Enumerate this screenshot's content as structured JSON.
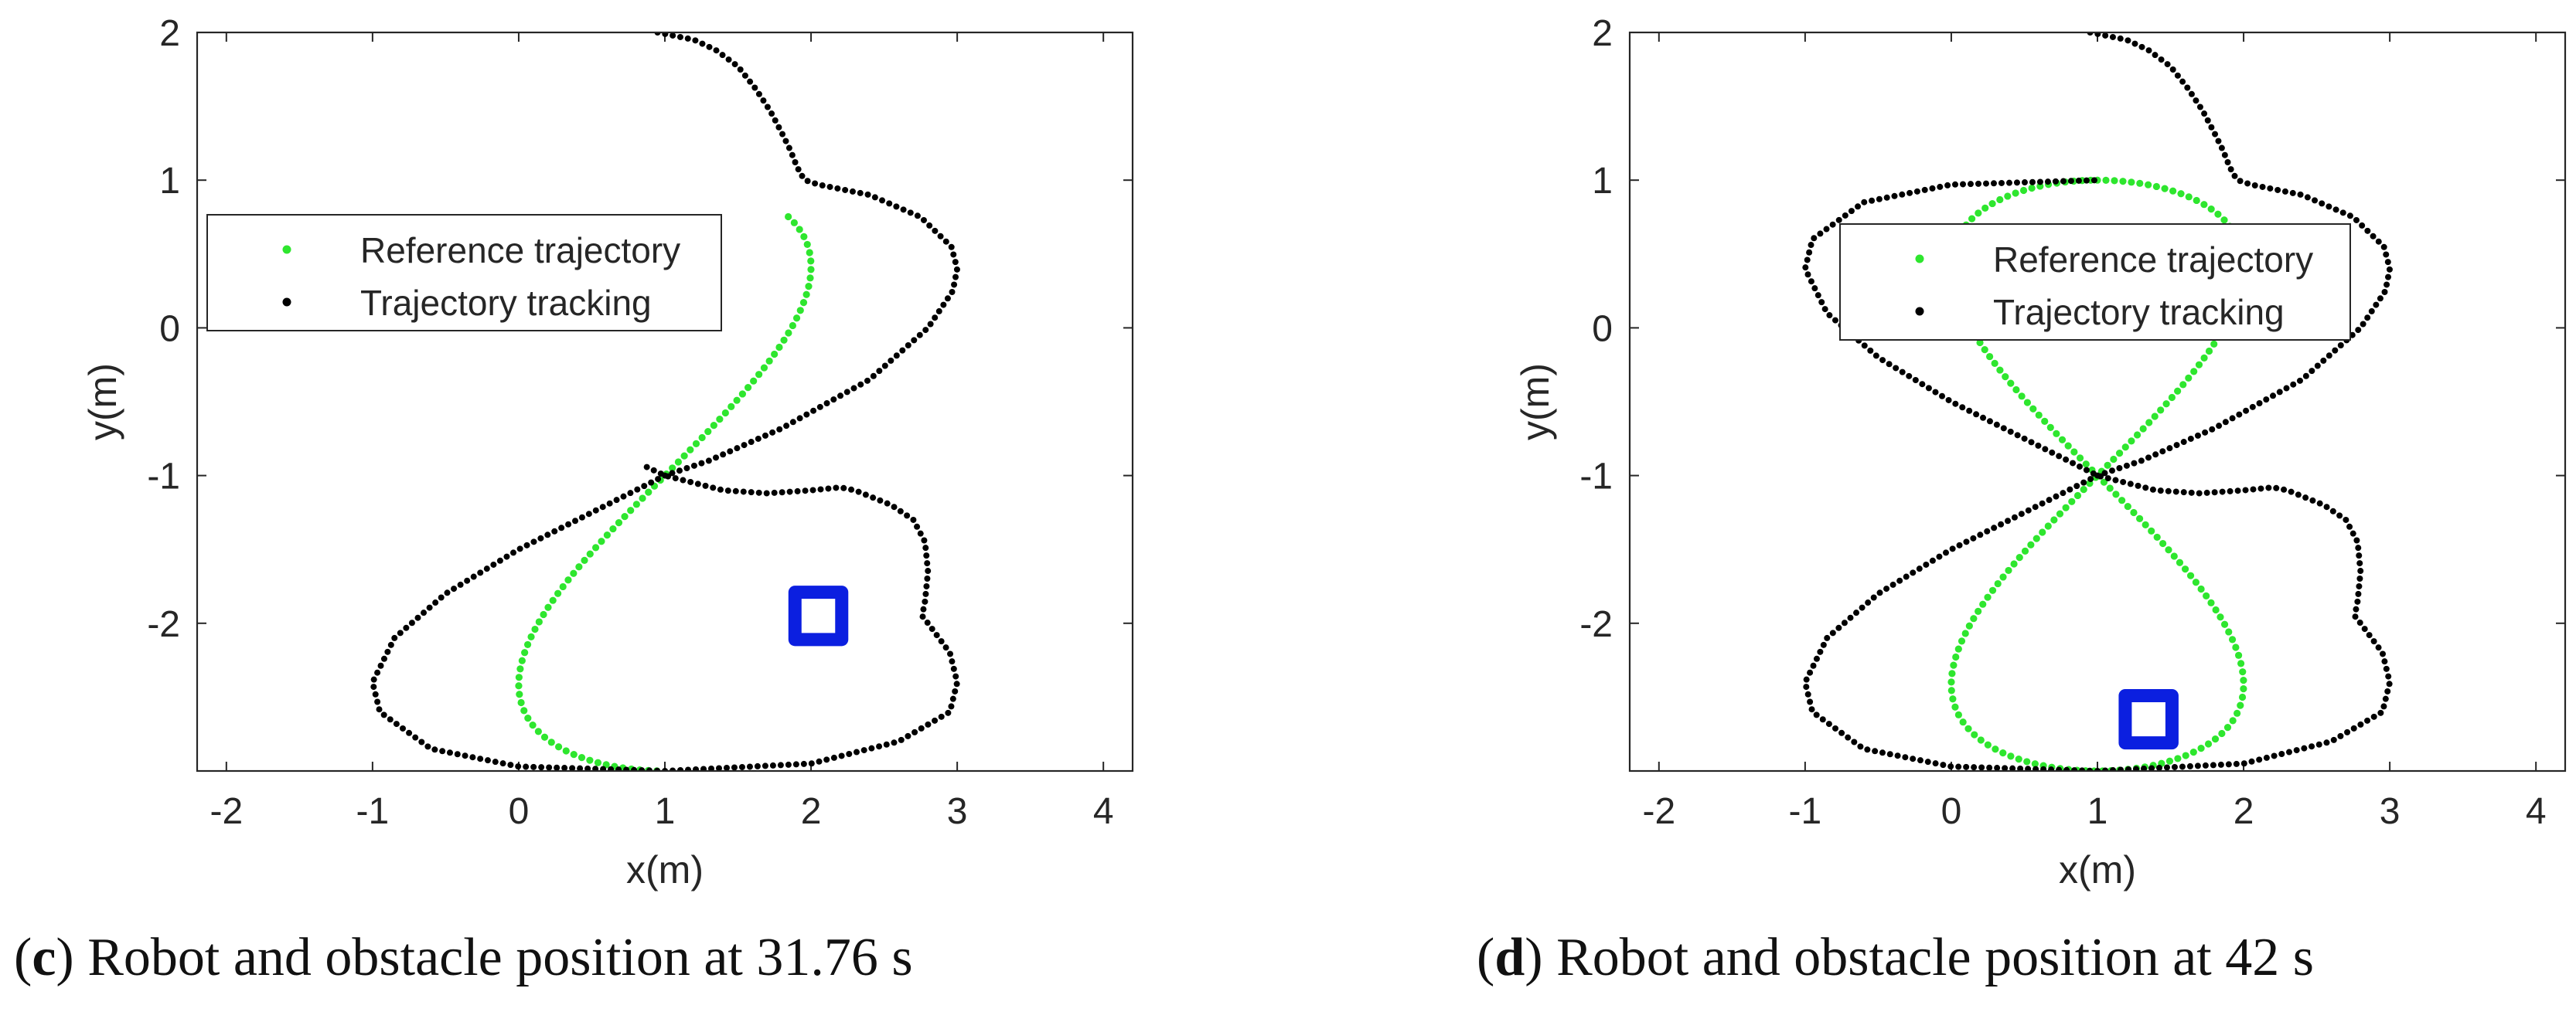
{
  "colors": {
    "reference": "#2ee62e",
    "tracking": "#000000",
    "obstacle": "#0b1fe0",
    "axis": "#262626"
  },
  "chart_data": [
    {
      "type": "scatter",
      "panel_label": "c",
      "caption": "Robot and obstacle position at 31.76 s",
      "xlabel": "x(m)",
      "ylabel": "y(m)",
      "xlim": [
        -2.2,
        4.2
      ],
      "ylim": [
        -3.0,
        2.0
      ],
      "xticks": [
        -2,
        -1,
        0,
        1,
        2,
        3,
        4
      ],
      "yticks": [
        -2,
        -1,
        0,
        1,
        2
      ],
      "legend": {
        "position": "upper-left",
        "entries": [
          "Reference trajectory",
          "Trajectory  tracking"
        ]
      },
      "series": [
        {
          "name": "Reference trajectory",
          "shape": "figure-eight",
          "center": [
            1.0,
            -1.0
          ],
          "amplitude": [
            2.0,
            2.0
          ],
          "t_range": [
            0.08,
            0.5
          ]
        },
        {
          "name": "Trajectory  tracking",
          "points": [
            [
              0.95,
              2.0
            ],
            [
              1.05,
              1.98
            ],
            [
              1.2,
              1.95
            ],
            [
              1.35,
              1.88
            ],
            [
              1.5,
              1.77
            ],
            [
              1.62,
              1.62
            ],
            [
              1.72,
              1.47
            ],
            [
              1.8,
              1.32
            ],
            [
              1.86,
              1.2
            ],
            [
              1.9,
              1.1
            ],
            [
              1.93,
              1.04
            ],
            [
              1.96,
              1.0
            ],
            [
              2.05,
              0.97
            ],
            [
              2.4,
              0.9
            ],
            [
              2.75,
              0.75
            ],
            [
              2.96,
              0.55
            ],
            [
              3.0,
              0.4
            ],
            [
              2.97,
              0.25
            ],
            [
              2.8,
              0.0
            ],
            [
              2.4,
              -0.35
            ],
            [
              1.8,
              -0.68
            ],
            [
              1.3,
              -0.9
            ],
            [
              1.0,
              -1.0
            ],
            [
              0.6,
              -1.2
            ],
            [
              0.0,
              -1.5
            ],
            [
              -0.5,
              -1.8
            ],
            [
              -0.85,
              -2.1
            ],
            [
              -1.0,
              -2.4
            ],
            [
              -0.95,
              -2.6
            ],
            [
              -0.6,
              -2.85
            ],
            [
              0.0,
              -2.97
            ],
            [
              1.0,
              -3.0
            ],
            [
              2.0,
              -2.95
            ],
            [
              2.6,
              -2.8
            ],
            [
              2.95,
              -2.6
            ],
            [
              3.0,
              -2.4
            ],
            [
              2.95,
              -2.2
            ],
            [
              2.8,
              -2.0
            ],
            [
              2.76,
              -1.95
            ],
            [
              2.78,
              -1.85
            ],
            [
              2.8,
              -1.65
            ],
            [
              2.78,
              -1.45
            ],
            [
              2.7,
              -1.3
            ],
            [
              2.55,
              -1.2
            ],
            [
              2.3,
              -1.1
            ],
            [
              2.2,
              -1.08
            ],
            [
              2.0,
              -1.1
            ],
            [
              1.7,
              -1.12
            ],
            [
              1.4,
              -1.1
            ],
            [
              1.2,
              -1.05
            ],
            [
              1.0,
              -1.0
            ],
            [
              0.85,
              -0.93
            ]
          ]
        }
      ],
      "obstacle": {
        "center": [
          2.05,
          -1.95
        ],
        "half_size": 0.16
      }
    },
    {
      "type": "scatter",
      "panel_label": "d",
      "caption": "Robot and obstacle position at 42 s",
      "xlabel": "x(m)",
      "ylabel": "y(m)",
      "xlim": [
        -2.2,
        4.2
      ],
      "ylim": [
        -3.0,
        2.0
      ],
      "xticks": [
        -2,
        -1,
        0,
        1,
        2,
        3,
        4
      ],
      "yticks": [
        -2,
        -1,
        0,
        1,
        2
      ],
      "legend": {
        "position": "upper-center",
        "entries": [
          "Reference trajectory",
          "Trajectory  tracking"
        ]
      },
      "series": [
        {
          "name": "Reference trajectory",
          "shape": "figure-eight",
          "center": [
            1.0,
            -1.0
          ],
          "amplitude": [
            2.0,
            2.0
          ],
          "t_range": [
            0.0,
            1.0
          ]
        },
        {
          "name": "Trajectory  tracking",
          "points": [
            [
              0.95,
              2.0
            ],
            [
              1.05,
              1.98
            ],
            [
              1.2,
              1.95
            ],
            [
              1.35,
              1.88
            ],
            [
              1.5,
              1.77
            ],
            [
              1.62,
              1.62
            ],
            [
              1.72,
              1.47
            ],
            [
              1.8,
              1.32
            ],
            [
              1.86,
              1.2
            ],
            [
              1.9,
              1.1
            ],
            [
              1.93,
              1.04
            ],
            [
              1.96,
              1.0
            ],
            [
              2.05,
              0.97
            ],
            [
              2.4,
              0.9
            ],
            [
              2.75,
              0.75
            ],
            [
              2.96,
              0.55
            ],
            [
              3.0,
              0.4
            ],
            [
              2.97,
              0.25
            ],
            [
              2.8,
              0.0
            ],
            [
              2.4,
              -0.35
            ],
            [
              1.8,
              -0.68
            ],
            [
              1.3,
              -0.9
            ],
            [
              1.0,
              -1.0
            ],
            [
              0.6,
              -1.2
            ],
            [
              0.0,
              -1.5
            ],
            [
              -0.5,
              -1.8
            ],
            [
              -0.85,
              -2.1
            ],
            [
              -1.0,
              -2.4
            ],
            [
              -0.95,
              -2.6
            ],
            [
              -0.6,
              -2.85
            ],
            [
              0.0,
              -2.97
            ],
            [
              1.0,
              -3.0
            ],
            [
              2.0,
              -2.95
            ],
            [
              2.6,
              -2.8
            ],
            [
              2.95,
              -2.6
            ],
            [
              3.0,
              -2.4
            ],
            [
              2.95,
              -2.2
            ],
            [
              2.8,
              -2.0
            ],
            [
              2.76,
              -1.95
            ],
            [
              2.78,
              -1.85
            ],
            [
              2.8,
              -1.65
            ],
            [
              2.78,
              -1.45
            ],
            [
              2.7,
              -1.3
            ],
            [
              2.55,
              -1.2
            ],
            [
              2.3,
              -1.1
            ],
            [
              2.2,
              -1.08
            ],
            [
              2.0,
              -1.1
            ],
            [
              1.7,
              -1.12
            ],
            [
              1.4,
              -1.1
            ],
            [
              1.2,
              -1.05
            ],
            [
              1.0,
              -1.0
            ],
            [
              0.6,
              -0.8
            ],
            [
              0.0,
              -0.5
            ],
            [
              -0.5,
              -0.2
            ],
            [
              -0.85,
              0.1
            ],
            [
              -1.0,
              0.4
            ],
            [
              -0.95,
              0.6
            ],
            [
              -0.6,
              0.85
            ],
            [
              0.0,
              0.97
            ],
            [
              1.0,
              1.0
            ]
          ]
        }
      ],
      "obstacle": {
        "center": [
          1.35,
          -2.65
        ],
        "half_size": 0.16
      }
    }
  ]
}
